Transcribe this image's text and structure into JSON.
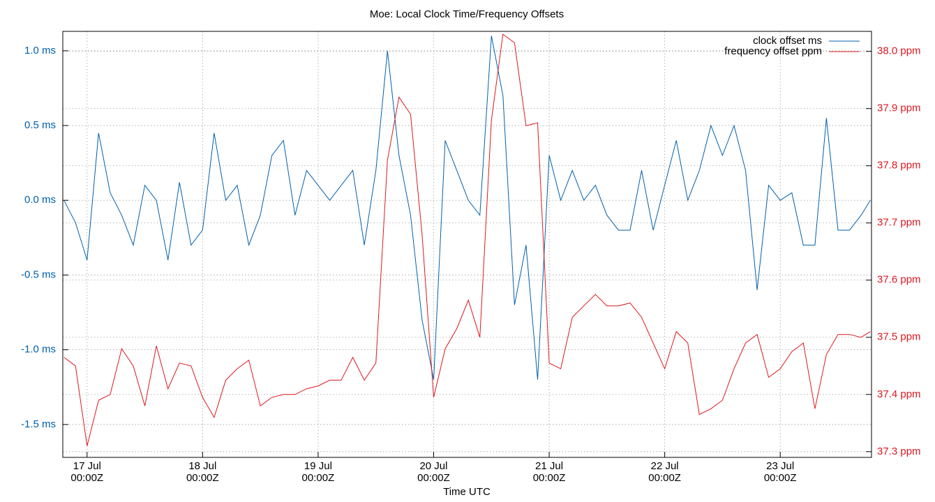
{
  "chart_data": {
    "type": "line",
    "title": "Moe: Local Clock Time/Frequency Offsets",
    "xlabel": "Time UTC",
    "x": [
      16.8,
      16.9,
      17.0,
      17.1,
      17.2,
      17.3,
      17.4,
      17.5,
      17.6,
      17.7,
      17.8,
      17.9,
      18.0,
      18.1,
      18.2,
      18.3,
      18.4,
      18.5,
      18.6,
      18.7,
      18.8,
      18.9,
      19.0,
      19.1,
      19.2,
      19.3,
      19.4,
      19.5,
      19.6,
      19.7,
      19.8,
      19.9,
      20.0,
      20.1,
      20.2,
      20.3,
      20.4,
      20.5,
      20.6,
      20.7,
      20.8,
      20.9,
      21.0,
      21.1,
      21.2,
      21.3,
      21.4,
      21.5,
      21.6,
      21.7,
      21.8,
      21.9,
      22.0,
      22.1,
      22.2,
      22.3,
      22.4,
      22.5,
      22.6,
      22.7,
      22.8,
      22.9,
      23.0,
      23.1,
      23.2,
      23.3,
      23.4,
      23.5,
      23.6,
      23.7,
      23.78
    ],
    "series": [
      {
        "name": "clock offset ms",
        "color": "#0060ad",
        "axis": "y",
        "values": [
          0.0,
          -0.15,
          -0.4,
          0.45,
          0.05,
          -0.1,
          -0.3,
          0.1,
          0.0,
          -0.4,
          0.12,
          -0.3,
          -0.2,
          0.45,
          0.0,
          0.1,
          -0.3,
          -0.1,
          0.3,
          0.4,
          -0.1,
          0.2,
          0.1,
          0.0,
          0.1,
          0.2,
          -0.3,
          0.2,
          1.0,
          0.3,
          -0.1,
          -0.8,
          -1.2,
          0.4,
          0.2,
          0.0,
          -0.1,
          1.1,
          0.7,
          -0.7,
          -0.3,
          -1.2,
          0.3,
          0.0,
          0.2,
          0.0,
          0.1,
          -0.1,
          -0.2,
          -0.2,
          0.2,
          -0.2,
          0.1,
          0.4,
          0.0,
          0.2,
          0.5,
          0.3,
          0.5,
          0.2,
          -0.6,
          0.1,
          0.0,
          0.05,
          -0.3,
          -0.3,
          0.55,
          -0.2,
          -0.2,
          -0.1,
          0.0
        ]
      },
      {
        "name": "frequency offset ppm",
        "color": "#dd181f",
        "axis": "y2",
        "values": [
          37.465,
          37.45,
          37.31,
          37.39,
          37.4,
          37.48,
          37.45,
          37.38,
          37.485,
          37.41,
          37.455,
          37.45,
          37.395,
          37.36,
          37.425,
          37.445,
          37.46,
          37.38,
          37.395,
          37.4,
          37.4,
          37.41,
          37.415,
          37.425,
          37.425,
          37.465,
          37.425,
          37.455,
          37.81,
          37.92,
          37.89,
          37.68,
          37.395,
          37.48,
          37.515,
          37.565,
          37.5,
          37.88,
          38.03,
          38.015,
          37.87,
          37.875,
          37.455,
          37.445,
          37.535,
          37.555,
          37.575,
          37.555,
          37.555,
          37.56,
          37.535,
          37.49,
          37.445,
          37.51,
          37.49,
          37.365,
          37.375,
          37.39,
          37.445,
          37.49,
          37.505,
          37.43,
          37.445,
          37.475,
          37.49,
          37.375,
          37.47,
          37.505,
          37.505,
          37.5,
          37.51
        ]
      }
    ],
    "xlim": [
      16.79,
      23.79
    ],
    "xticks": [
      {
        "value": 17,
        "label": "17 Jul\n00:00Z"
      },
      {
        "value": 18,
        "label": "18 Jul\n00:00Z"
      },
      {
        "value": 19,
        "label": "19 Jul\n00:00Z"
      },
      {
        "value": 20,
        "label": "20 Jul\n00:00Z"
      },
      {
        "value": 21,
        "label": "21 Jul\n00:00Z"
      },
      {
        "value": 22,
        "label": "22 Jul\n00:00Z"
      },
      {
        "value": 23,
        "label": "23 Jul\n00:00Z"
      }
    ],
    "ylim": [
      -1.72,
      1.13
    ],
    "yticks": [
      {
        "value": 1.0,
        "label": "1.0 ms"
      },
      {
        "value": 0.5,
        "label": "0.5 ms"
      },
      {
        "value": 0.0,
        "label": "0.0 ms"
      },
      {
        "value": -0.5,
        "label": "-0.5 ms"
      },
      {
        "value": -1.0,
        "label": "-1.0 ms"
      },
      {
        "value": -1.5,
        "label": "-1.5 ms"
      }
    ],
    "y2lim": [
      37.29,
      38.035
    ],
    "y2ticks": [
      {
        "value": 38.0,
        "label": "38.0 ppm"
      },
      {
        "value": 37.9,
        "label": "37.9 ppm"
      },
      {
        "value": 37.8,
        "label": "37.8 ppm"
      },
      {
        "value": 37.7,
        "label": "37.7 ppm"
      },
      {
        "value": 37.6,
        "label": "37.6 ppm"
      },
      {
        "value": 37.5,
        "label": "37.5 ppm"
      },
      {
        "value": 37.4,
        "label": "37.4 ppm"
      },
      {
        "value": 37.3,
        "label": "37.3 ppm"
      }
    ],
    "grid": true,
    "legend": "top-right"
  }
}
